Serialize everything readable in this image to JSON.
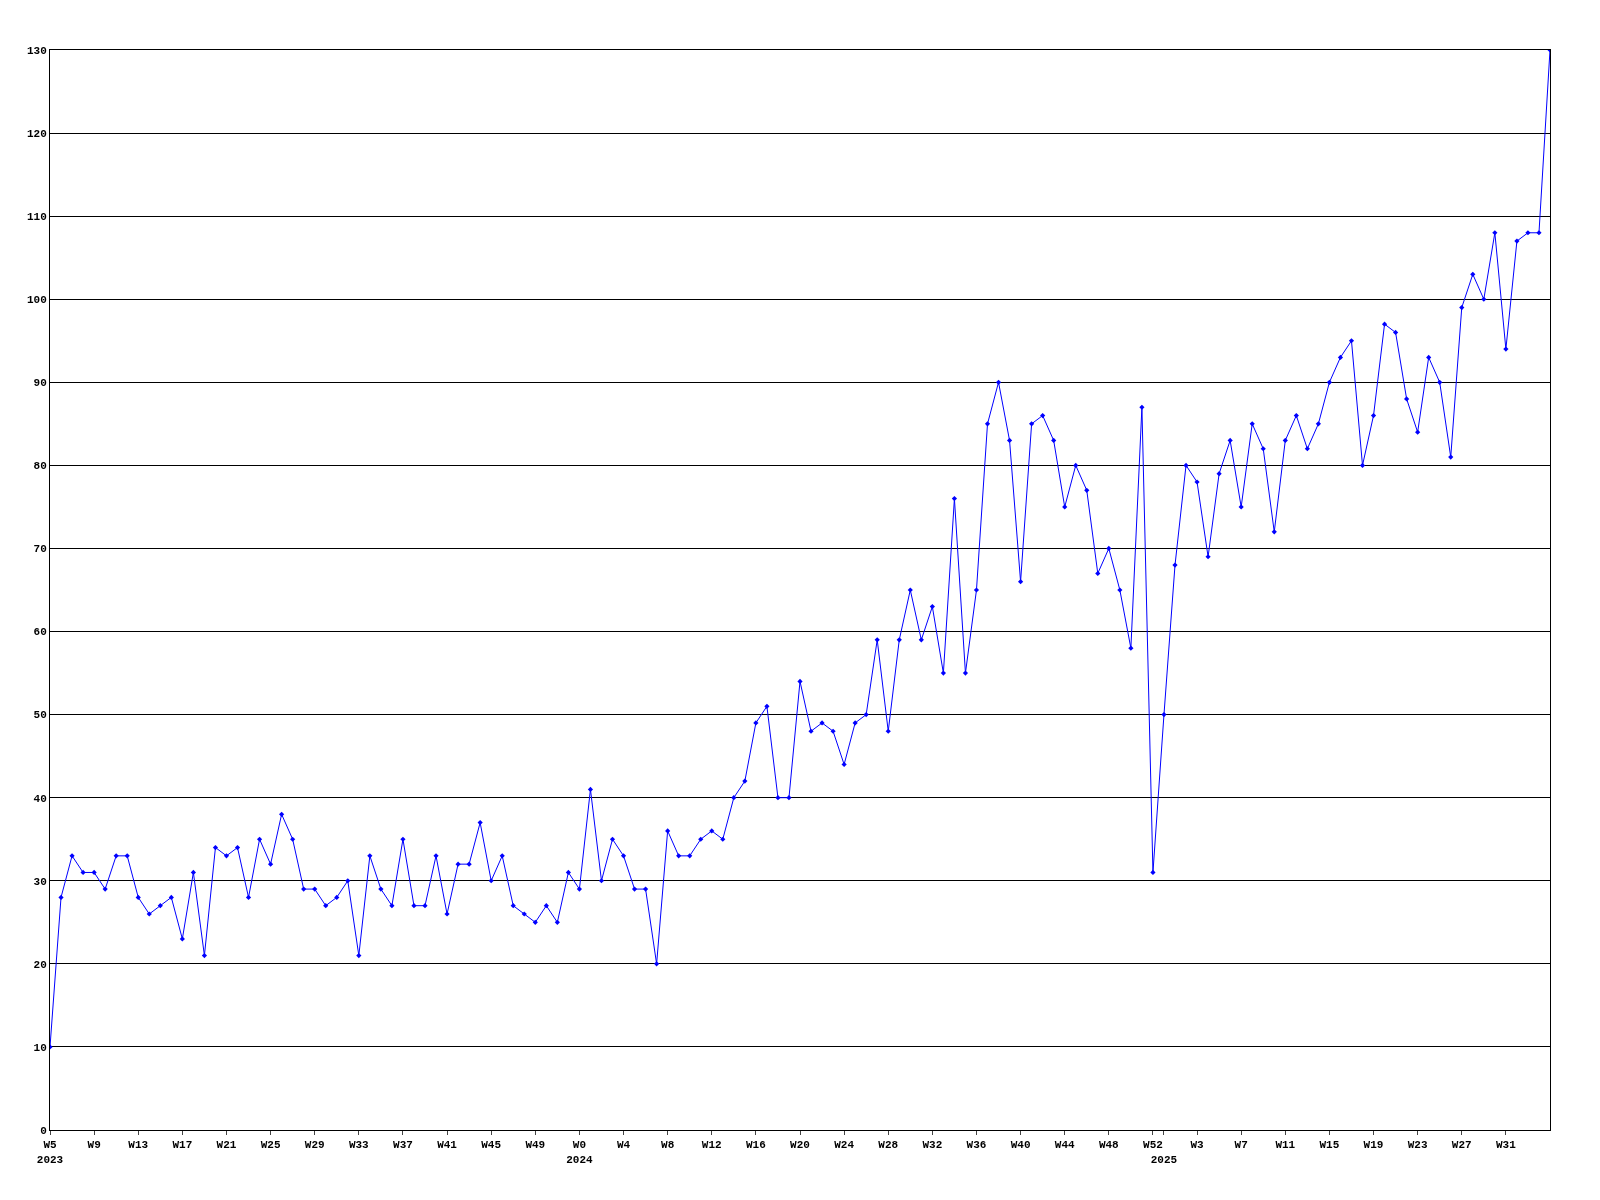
{
  "chart_data": {
    "type": "line",
    "categories": [
      "W5\n2023",
      null,
      null,
      null,
      "W9",
      null,
      null,
      null,
      "W13",
      null,
      null,
      null,
      "W17",
      null,
      null,
      null,
      "W21",
      null,
      null,
      null,
      "W25",
      null,
      null,
      null,
      "W29",
      null,
      null,
      null,
      "W33",
      null,
      null,
      null,
      "W37",
      null,
      null,
      null,
      "W41",
      null,
      null,
      null,
      "W45",
      null,
      null,
      null,
      "W49",
      null,
      null,
      null,
      "W0\n2024",
      null,
      null,
      null,
      "W4",
      null,
      null,
      null,
      "W8",
      null,
      null,
      null,
      "W12",
      null,
      null,
      null,
      "W16",
      null,
      null,
      null,
      "W20",
      null,
      null,
      null,
      "W24",
      null,
      null,
      null,
      "W28",
      null,
      null,
      null,
      "W32",
      null,
      null,
      null,
      "W36",
      null,
      null,
      null,
      "W40",
      null,
      null,
      null,
      "W44",
      null,
      null,
      null,
      "W48",
      null,
      null,
      null,
      "W52",
      "\n2025",
      null,
      null,
      "W3",
      null,
      null,
      null,
      "W7",
      null,
      null,
      null,
      "W11",
      null,
      null,
      null,
      "W15",
      null,
      null,
      null,
      "W19",
      null,
      null,
      null,
      "W23",
      null,
      null,
      null,
      "W27",
      null,
      null,
      null,
      "W31",
      null,
      null,
      null,
      null
    ],
    "series": [
      {
        "color": "#0000ff",
        "values": [
          10,
          28,
          33,
          31,
          31,
          29,
          33,
          33,
          28,
          26,
          27,
          28,
          23,
          31,
          21,
          34,
          33,
          34,
          28,
          35,
          32,
          38,
          35,
          29,
          29,
          27,
          28,
          30,
          21,
          33,
          29,
          27,
          35,
          27,
          27,
          33,
          26,
          32,
          32,
          37,
          30,
          33,
          27,
          26,
          25,
          27,
          25,
          31,
          29,
          41,
          30,
          35,
          33,
          29,
          29,
          20,
          36,
          33,
          33,
          35,
          36,
          35,
          40,
          42,
          49,
          51,
          40,
          40,
          54,
          48,
          49,
          48,
          44,
          49,
          50,
          59,
          48,
          59,
          65,
          59,
          63,
          55,
          76,
          55,
          65,
          85,
          90,
          83,
          66,
          85,
          86,
          83,
          75,
          80,
          77,
          67,
          70,
          65,
          58,
          87,
          31,
          50,
          68,
          80,
          78,
          69,
          79,
          83,
          75,
          85,
          82,
          72,
          83,
          86,
          82,
          85,
          90,
          93,
          95,
          80,
          86,
          97,
          96,
          88,
          84,
          93,
          90,
          81,
          99,
          103,
          100,
          108,
          94,
          107,
          108,
          108,
          130
        ]
      }
    ],
    "ylim": [
      0,
      130
    ],
    "yticks": [
      0,
      10,
      20,
      30,
      40,
      50,
      60,
      70,
      80,
      90,
      100,
      110,
      120,
      130
    ],
    "grid": "y",
    "marker": "diamond",
    "line_style": "solid"
  }
}
